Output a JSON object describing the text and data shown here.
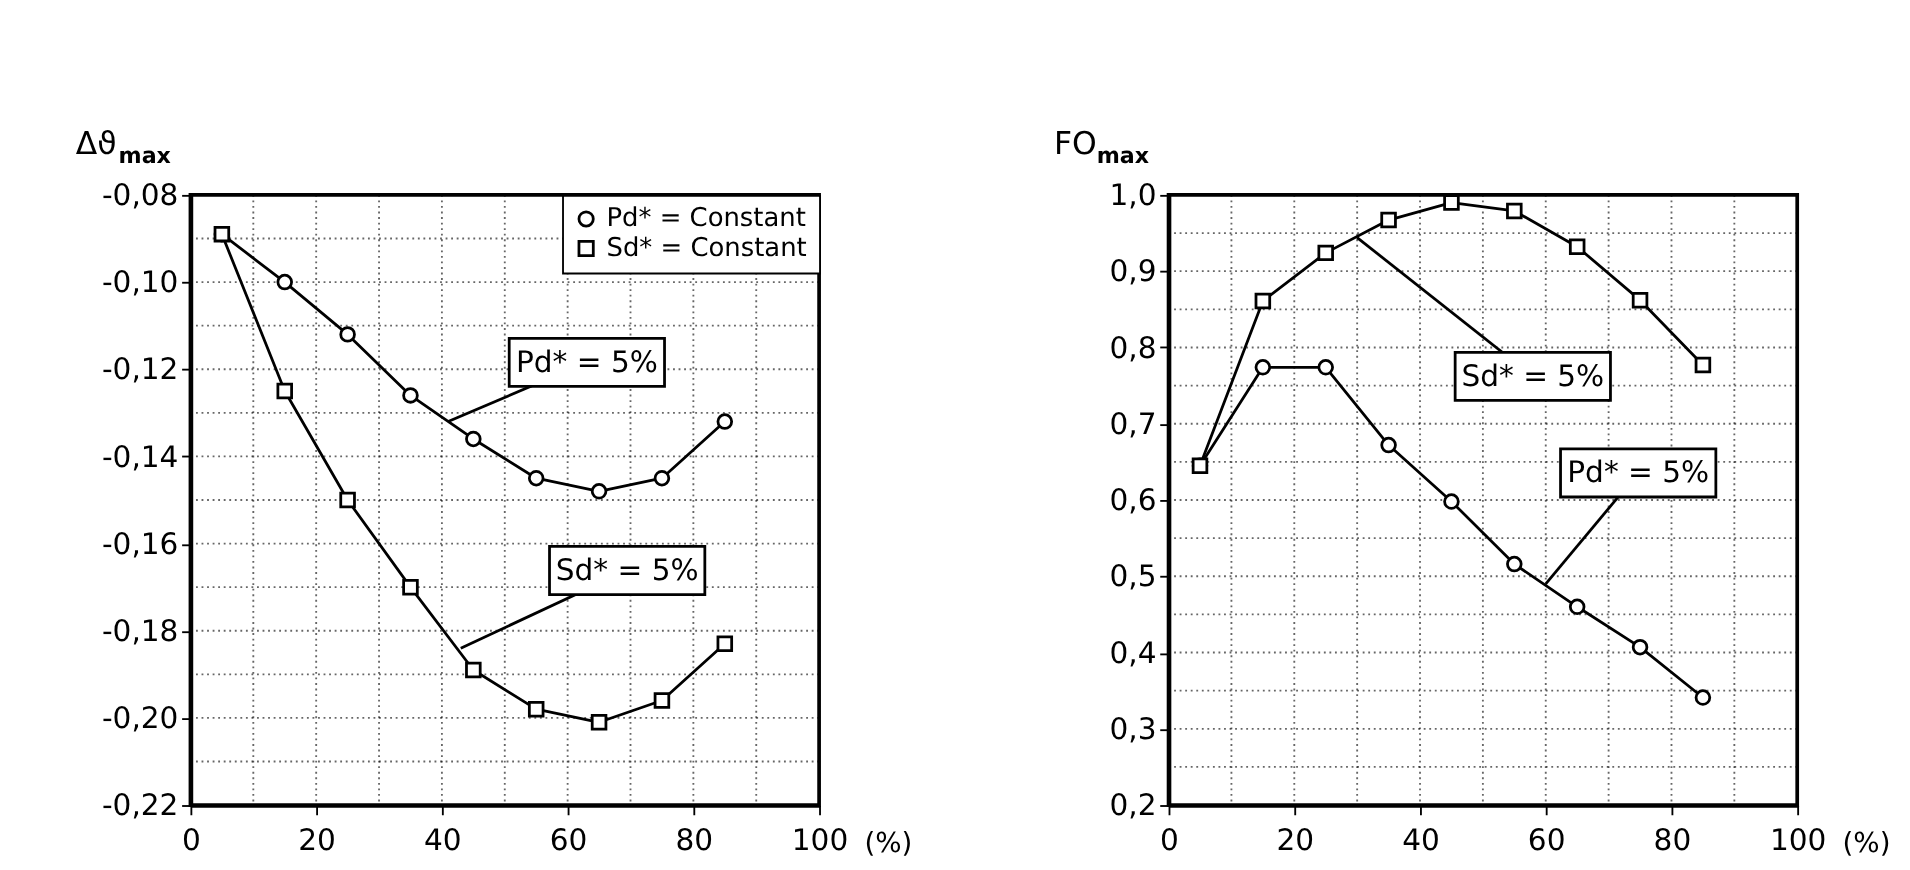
{
  "chart_data": [
    {
      "type": "line",
      "ylabel": "Δϑ$_{max}$",
      "xlabel": "(%)",
      "x": [
        5,
        15,
        25,
        35,
        45,
        55,
        65,
        75,
        85
      ],
      "series": [
        {
          "name": "Pd* = Constant",
          "color": "#000000",
          "marker": "circle",
          "values": [
            -0.089,
            -0.1,
            -0.112,
            -0.126,
            -0.136,
            -0.145,
            -0.148,
            -0.145,
            -0.132
          ]
        },
        {
          "name": "Sd* = Constant",
          "color": "#000000",
          "marker": "square",
          "values": [
            -0.089,
            -0.125,
            -0.15,
            -0.17,
            -0.189,
            -0.198,
            -0.201,
            -0.196,
            -0.183
          ]
        }
      ],
      "xlim": [
        0,
        100
      ],
      "xticks": [
        0,
        {
          "value": 10,
          "label": null
        },
        20,
        {
          "value": 30,
          "label": null
        },
        40,
        {
          "value": 50,
          "label": null
        },
        60,
        {
          "value": 70,
          "label": null
        },
        80,
        {
          "value": 90,
          "label": null
        },
        100
      ],
      "ylim": [
        -0.22,
        -0.08
      ],
      "yticks": [
        {
          "value": -0.22,
          "label": "-0,22"
        },
        {
          "value": -0.21,
          "label": null
        },
        {
          "value": -0.2,
          "label": "-0,20"
        },
        {
          "value": -0.19,
          "label": null
        },
        {
          "value": -0.18,
          "label": "-0,18"
        },
        {
          "value": -0.17,
          "label": null
        },
        {
          "value": -0.16,
          "label": "-0,16"
        },
        {
          "value": -0.15,
          "label": null
        },
        {
          "value": -0.14,
          "label": "-0,14"
        },
        {
          "value": -0.13,
          "label": null
        },
        {
          "value": -0.12,
          "label": "-0,12"
        },
        {
          "value": -0.11,
          "label": null
        },
        {
          "value": -0.1,
          "label": "-0,10"
        },
        {
          "value": -0.09,
          "label": null
        },
        {
          "value": -0.08,
          "label": "-0,08"
        }
      ],
      "grid": true,
      "legend": "top right",
      "line_style": "solid",
      "annotations": [
        {
          "text": "Pd* = 5%",
          "x": 41,
          "y": -0.132
        },
        {
          "text": "Sd* = 5%",
          "x": 43,
          "y": -0.184
        }
      ]
    },
    {
      "type": "line",
      "ylabel": "FO$_{max}$",
      "xlabel": "(%)",
      "x": [
        5,
        15,
        25,
        35,
        45,
        55,
        65,
        75,
        85
      ],
      "series": [
        {
          "color": "#000000",
          "marker": "circle",
          "values": [
            0.645,
            0.774,
            0.774,
            0.672,
            0.598,
            0.516,
            0.46,
            0.407,
            0.341
          ]
        },
        {
          "color": "#000000",
          "marker": "square",
          "values": [
            0.645,
            0.861,
            0.924,
            0.967,
            0.99,
            0.979,
            0.932,
            0.862,
            0.777
          ]
        }
      ],
      "xlim": [
        0,
        100
      ],
      "xticks": [
        0,
        {
          "value": 10,
          "label": null
        },
        20,
        {
          "value": 30,
          "label": null
        },
        40,
        {
          "value": 50,
          "label": null
        },
        60,
        {
          "value": 70,
          "label": null
        },
        80,
        {
          "value": 90,
          "label": null
        },
        100
      ],
      "ylim": [
        0.2,
        1.0
      ],
      "yticks": [
        {
          "value": 0.2,
          "label": "0,2"
        },
        {
          "value": 0.25,
          "label": null
        },
        {
          "value": 0.3,
          "label": "0,3"
        },
        {
          "value": 0.35,
          "label": null
        },
        {
          "value": 0.4,
          "label": "0,4"
        },
        {
          "value": 0.45,
          "label": null
        },
        {
          "value": 0.5,
          "label": "0,5"
        },
        {
          "value": 0.55,
          "label": null
        },
        {
          "value": 0.6,
          "label": "0,6"
        },
        {
          "value": 0.65,
          "label": null
        },
        {
          "value": 0.7,
          "label": "0,7"
        },
        {
          "value": 0.75,
          "label": null
        },
        {
          "value": 0.8,
          "label": "0,8"
        },
        {
          "value": 0.85,
          "label": null
        },
        {
          "value": 0.9,
          "label": "0,9"
        },
        {
          "value": 0.95,
          "label": null
        },
        {
          "value": 1.0,
          "label": "1,0"
        }
      ],
      "grid": true,
      "legend": false,
      "line_style": "solid",
      "annotations": [
        {
          "text": "Sd* = 5%",
          "x": 30,
          "y": 0.944
        },
        {
          "text": "Pd* = 5%",
          "x": 60,
          "y": 0.49
        }
      ]
    }
  ]
}
